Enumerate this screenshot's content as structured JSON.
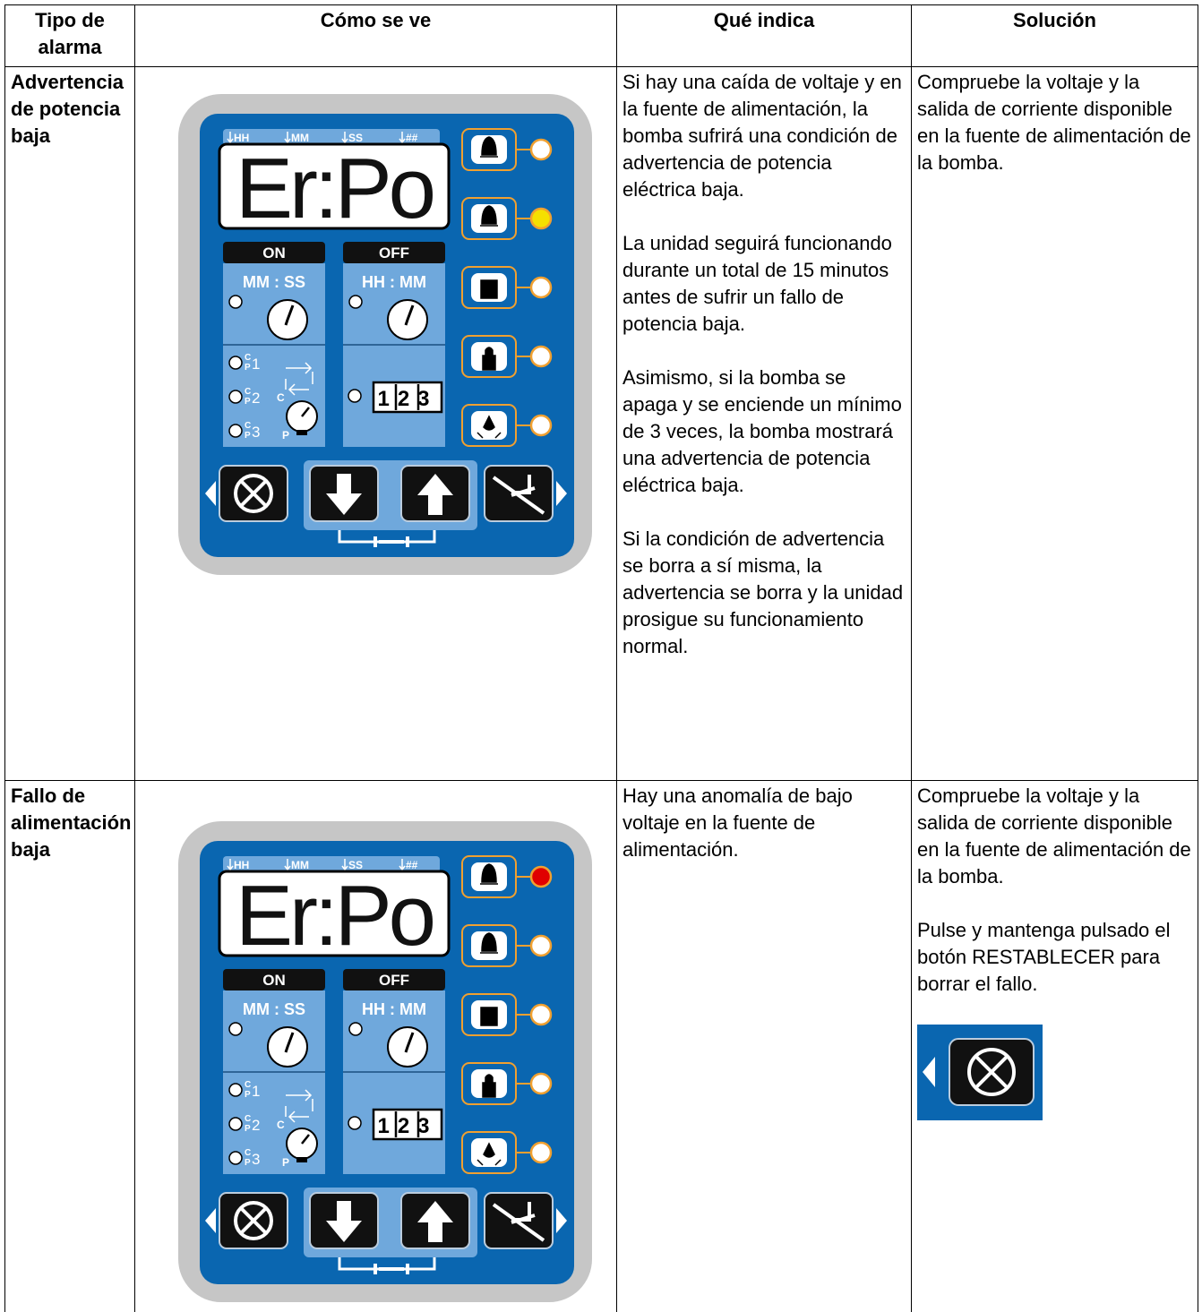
{
  "header": [
    "Tipo de alarma",
    "Cómo se ve",
    "Qué indica",
    "Solución"
  ],
  "rows": [
    {
      "alarm_type": "Advertencia de potencia baja",
      "panel": {
        "display": "Er:Po",
        "units": [
          "HH",
          "MM",
          "SS",
          "##"
        ],
        "on_label": "ON",
        "off_label": "OFF",
        "on_format": "MM : SS",
        "off_format": "HH : MM",
        "cycle_c": "C",
        "cycle_p": "P",
        "cycle_numbers": [
          "1",
          "2",
          "3"
        ],
        "counter": "123",
        "led_colors": [
          "#ffffff",
          "#f5e000",
          "#ffffff",
          "#ffffff",
          "#ffffff"
        ]
      },
      "indication": [
        "Si hay una caída de voltaje y en la fuente de alimentación, la bomba sufrirá una condición de advertencia de potencia eléctrica baja.",
        "La unidad seguirá funcionando durante un total de 15 minutos antes de sufrir un fallo de potencia baja.",
        "Asimismo, si la bomba se apaga y se enciende un mínimo de 3 veces, la bomba mostrará una advertencia de potencia eléctrica baja.",
        "Si la condición de advertencia se borra a sí misma, la advertencia se borra y la unidad prosigue su funcionamiento normal."
      ],
      "solution": [
        "Compruebe la voltaje y la salida de corriente disponible en la fuente de alimentación de la bomba."
      ]
    },
    {
      "alarm_type": "Fallo de alimentación baja",
      "panel": {
        "display": "Er:Po",
        "units": [
          "HH",
          "MM",
          "SS",
          "##"
        ],
        "on_label": "ON",
        "off_label": "OFF",
        "on_format": "MM : SS",
        "off_format": "HH : MM",
        "cycle_c": "C",
        "cycle_p": "P",
        "cycle_numbers": [
          "1",
          "2",
          "3"
        ],
        "counter": "123",
        "led_colors": [
          "#e00000",
          "#ffffff",
          "#ffffff",
          "#ffffff",
          "#ffffff"
        ]
      },
      "indication": [
        "Hay una anomalía de bajo voltaje en la fuente de alimentación."
      ],
      "solution": [
        "Compruebe la voltaje y la salida de corriente disponible en la fuente de alimentación de la bomba.",
        "Pulse y mantenga pulsado el botón RESTABLECER para borrar el fallo."
      ]
    }
  ]
}
